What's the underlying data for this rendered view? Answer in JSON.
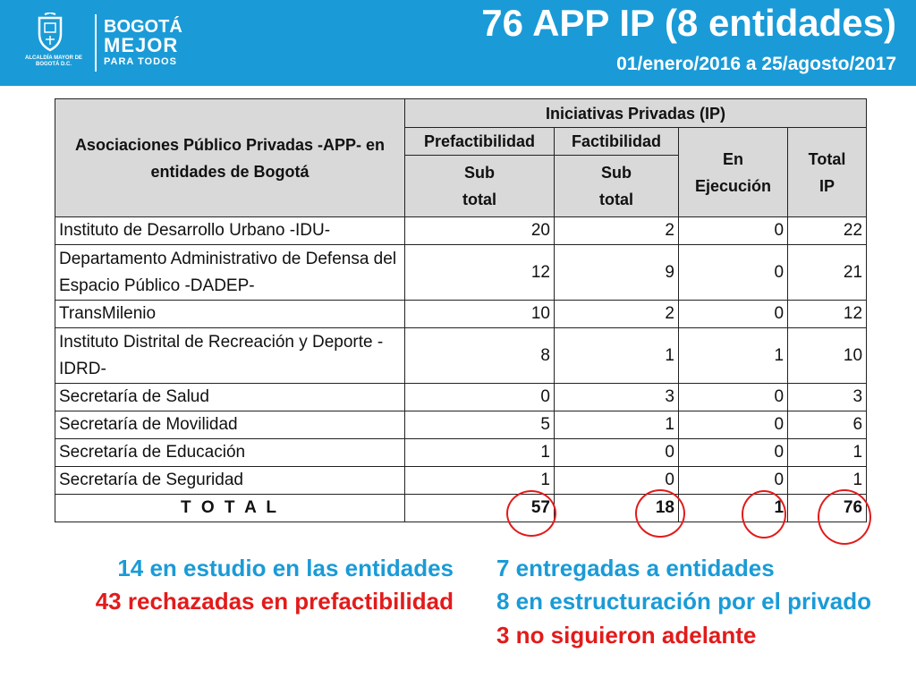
{
  "header": {
    "logo_alcaldia": "ALCALDÍA MAYOR DE BOGOTÁ D.C.",
    "brand_line1": "BOGOTÁ",
    "brand_line2": "MEJOR",
    "brand_line3": "PARA TODOS",
    "title": "76 APP IP (8 entidades)",
    "subtitle": "01/enero/2016 a 25/agosto/2017"
  },
  "table": {
    "corner_header": "Asociaciones Público Privadas -APP- en entidades de Bogotá",
    "group_header": "Iniciativas Privadas (IP)",
    "col_prefactibilidad": "Prefactibilidad",
    "col_factibilidad": "Factibilidad",
    "col_en_ejecucion": "En Ejecución",
    "col_total_ip": "Total IP",
    "col_subtotal_pre": "Sub total",
    "col_subtotal_fact": "Sub total",
    "rows": [
      {
        "entidad": "Instituto de Desarrollo Urbano -IDU-",
        "pre": "20",
        "fact": "2",
        "ejec": "0",
        "total": "22"
      },
      {
        "entidad": "Departamento Administrativo de Defensa del Espacio Público -DADEP-",
        "pre": "12",
        "fact": "9",
        "ejec": "0",
        "total": "21"
      },
      {
        "entidad": "TransMilenio",
        "pre": "10",
        "fact": "2",
        "ejec": "0",
        "total": "12"
      },
      {
        "entidad": "Instituto Distrital de Recreación y Deporte -IDRD-",
        "pre": "8",
        "fact": "1",
        "ejec": "1",
        "total": "10"
      },
      {
        "entidad": "Secretaría de Salud",
        "pre": "0",
        "fact": "3",
        "ejec": "0",
        "total": "3"
      },
      {
        "entidad": "Secretaría de Movilidad",
        "pre": "5",
        "fact": "1",
        "ejec": "0",
        "total": "6"
      },
      {
        "entidad": "Secretaría de Educación",
        "pre": "1",
        "fact": "0",
        "ejec": "0",
        "total": "1"
      },
      {
        "entidad": "Secretaría de Seguridad",
        "pre": "1",
        "fact": "0",
        "ejec": "0",
        "total": "1"
      }
    ],
    "total_row": {
      "label": "T O T A L",
      "pre": "57",
      "fact": "18",
      "ejec": "1",
      "total": "76"
    }
  },
  "notes": {
    "left_1": "14 en estudio en las entidades",
    "left_2": "43 rechazadas en prefactibilidad",
    "right_1": "7 entregadas a entidades",
    "right_2": "8 en estructuración por el privado",
    "right_3": "3 no siguieron adelante"
  },
  "colors": {
    "header_blue": "#1a9bd7",
    "accent_red": "#e21b1b",
    "header_gray": "#d9d9d9"
  }
}
